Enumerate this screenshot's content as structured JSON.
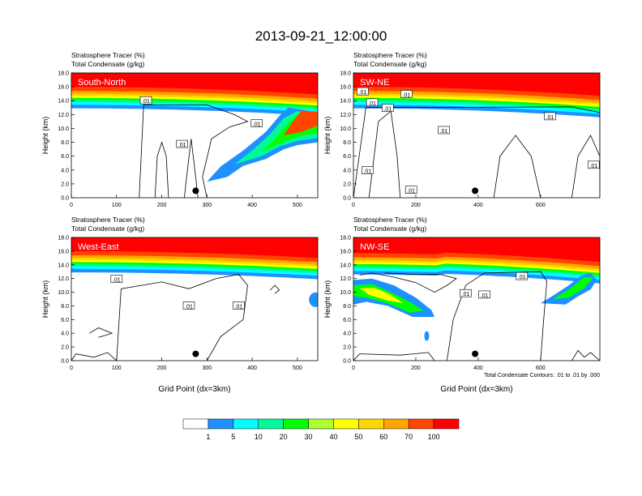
{
  "page_title": "2013-09-21_12:00:00",
  "chart_data": [
    {
      "type": "heatmap",
      "panel_label": "South-North",
      "title_line1": "Stratosphere Tracer   (%)",
      "title_line2": "Total Condensate   (g/kg)",
      "ylabel": "Height (km)",
      "xlabel": "",
      "xlim": [
        0,
        545
      ],
      "ylim": [
        0,
        18
      ],
      "x_ticks": [
        0,
        100,
        200,
        300,
        400,
        500
      ],
      "y_ticks": [
        "0.0",
        "2.0",
        "4.0",
        "6.0",
        "8.0",
        "10.0",
        "12.0",
        "14.0",
        "16.0",
        "18.0"
      ],
      "contour_labels": [
        {
          "text": ".01",
          "x": 165,
          "y": 14.0
        },
        {
          "text": ".01",
          "x": 410,
          "y": 10.7
        },
        {
          "text": ".01",
          "x": 245,
          "y": 7.7
        }
      ],
      "marker": {
        "x": 275,
        "y": 1.0
      }
    },
    {
      "type": "heatmap",
      "panel_label": "SW-NE",
      "title_line1": "Stratosphere Tracer   (%)",
      "title_line2": "Total Condensate   (g/kg)",
      "ylabel": "Height (km)",
      "xlabel": "",
      "xlim": [
        0,
        790
      ],
      "ylim": [
        0,
        18
      ],
      "x_ticks": [
        0,
        200,
        400,
        600
      ],
      "y_ticks": [
        "0.0",
        "2.0",
        "4.0",
        "6.0",
        "8.0",
        "10.0",
        "12.0",
        "14.0",
        "16.0",
        "18.0"
      ],
      "contour_labels": [
        {
          "text": ".01",
          "x": 30,
          "y": 15.3
        },
        {
          "text": ".01",
          "x": 60,
          "y": 13.7
        },
        {
          "text": ".01",
          "x": 110,
          "y": 12.9
        },
        {
          "text": ".01",
          "x": 170,
          "y": 14.9
        },
        {
          "text": ".01",
          "x": 290,
          "y": 9.7
        },
        {
          "text": ".01",
          "x": 630,
          "y": 11.7
        },
        {
          "text": ".01",
          "x": 45,
          "y": 3.9
        },
        {
          "text": ".01",
          "x": 185,
          "y": 1.1
        },
        {
          "text": ".01",
          "x": 770,
          "y": 4.7
        }
      ],
      "marker": {
        "x": 390,
        "y": 1.0
      }
    },
    {
      "type": "heatmap",
      "panel_label": "West-East",
      "title_line1": "Stratosphere Tracer   (%)",
      "title_line2": "Total Condensate   (g/kg)",
      "ylabel": "Height (km)",
      "xlabel": "Grid Point (dx=3km)",
      "xlim": [
        0,
        545
      ],
      "ylim": [
        0,
        18
      ],
      "x_ticks": [
        0,
        100,
        200,
        300,
        400,
        500
      ],
      "y_ticks": [
        "0.0",
        "2.0",
        "4.0",
        "6.0",
        "8.0",
        "10.0",
        "12.0",
        "14.0",
        "16.0",
        "18.0"
      ],
      "contour_labels": [
        {
          "text": ".01",
          "x": 100,
          "y": 11.9
        },
        {
          "text": ".01",
          "x": 260,
          "y": 8.0
        },
        {
          "text": ".01",
          "x": 370,
          "y": 8.0
        }
      ],
      "marker": {
        "x": 275,
        "y": 1.0
      }
    },
    {
      "type": "heatmap",
      "panel_label": "NW-SE",
      "title_line1": "Stratosphere Tracer   (%)",
      "title_line2": "Total Condensate   (g/kg)",
      "ylabel": "Height (km)",
      "xlabel": "Grid Point (dx=3km)",
      "xlim": [
        0,
        790
      ],
      "ylim": [
        0,
        18
      ],
      "x_ticks": [
        0,
        200,
        400,
        600
      ],
      "y_ticks": [
        "0.0",
        "2.0",
        "4.0",
        "6.0",
        "8.0",
        "10.0",
        "12.0",
        "14.0",
        "16.0",
        "18.0"
      ],
      "contour_labels": [
        {
          "text": ".01",
          "x": 360,
          "y": 9.8
        },
        {
          "text": ".01",
          "x": 420,
          "y": 9.6
        },
        {
          "text": ".01",
          "x": 540,
          "y": 12.3
        }
      ],
      "marker": {
        "x": 390,
        "y": 1.0
      },
      "contour_note": "Total Condensate Contours: .01 to .01 by .000"
    }
  ],
  "colorbar": {
    "labels": [
      "1",
      "5",
      "10",
      "20",
      "30",
      "40",
      "50",
      "60",
      "70",
      "100"
    ],
    "colors": [
      "#ffffff",
      "#1e90ff",
      "#00ffff",
      "#00fa9a",
      "#00ff00",
      "#adff2f",
      "#ffff00",
      "#ffd700",
      "#ffa500",
      "#ff4500",
      "#ff0000"
    ]
  }
}
